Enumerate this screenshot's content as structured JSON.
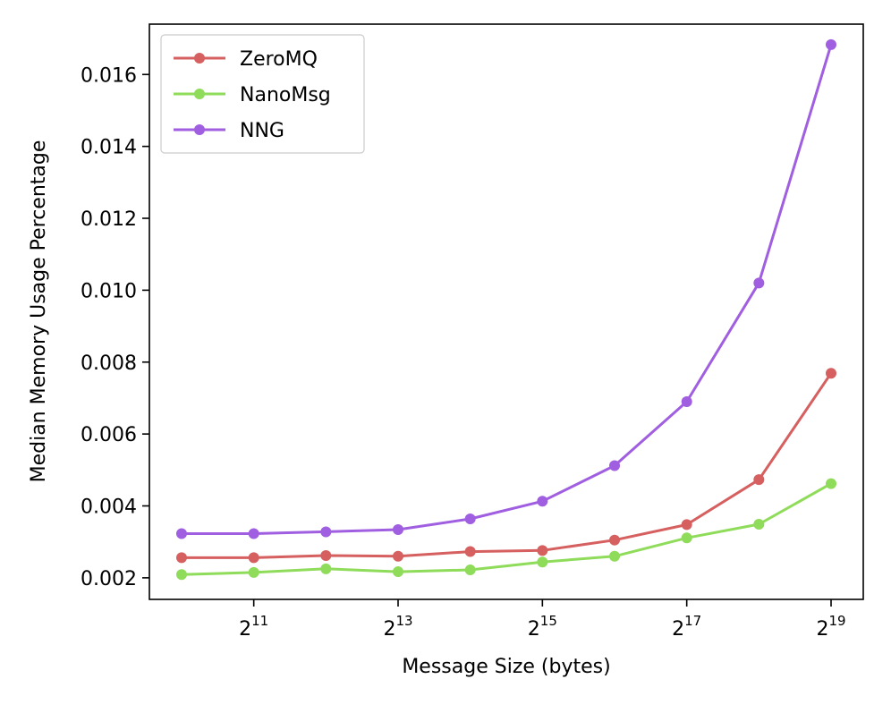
{
  "chart_data": {
    "type": "line",
    "title": "",
    "xlabel": "Message Size (bytes)",
    "ylabel": "Median Memory Usage Percentage",
    "x_scale": "log2",
    "x": [
      1024,
      2048,
      4096,
      8192,
      16384,
      32768,
      65536,
      131072,
      262144,
      524288
    ],
    "xlim": [
      1024,
      524288
    ],
    "ylim": [
      0.0014,
      0.0174
    ],
    "x_ticks": [
      {
        "base": "2",
        "exp": "11",
        "value": 2048
      },
      {
        "base": "2",
        "exp": "13",
        "value": 8192
      },
      {
        "base": "2",
        "exp": "15",
        "value": 32768
      },
      {
        "base": "2",
        "exp": "17",
        "value": 131072
      },
      {
        "base": "2",
        "exp": "19",
        "value": 524288
      }
    ],
    "y_ticks": [
      {
        "label": "0.002",
        "value": 0.002
      },
      {
        "label": "0.004",
        "value": 0.004
      },
      {
        "label": "0.006",
        "value": 0.006
      },
      {
        "label": "0.008",
        "value": 0.008
      },
      {
        "label": "0.010",
        "value": 0.01
      },
      {
        "label": "0.012",
        "value": 0.012
      },
      {
        "label": "0.014",
        "value": 0.014
      },
      {
        "label": "0.016",
        "value": 0.016
      }
    ],
    "grid": false,
    "legend_position": "top-left",
    "series": [
      {
        "name": "ZeroMQ",
        "color": "#d65f5f",
        "values": [
          0.00256,
          0.00256,
          0.00262,
          0.0026,
          0.00273,
          0.00276,
          0.00305,
          0.00348,
          0.00473,
          0.00769
        ]
      },
      {
        "name": "NanoMsg",
        "color": "#8fdb5a",
        "values": [
          0.00209,
          0.00215,
          0.00225,
          0.00217,
          0.00222,
          0.00244,
          0.0026,
          0.00311,
          0.00349,
          0.00462
        ]
      },
      {
        "name": "NNG",
        "color": "#a05ee0",
        "values": [
          0.00323,
          0.00323,
          0.00328,
          0.00334,
          0.00364,
          0.00413,
          0.00512,
          0.0069,
          0.0102,
          0.01683
        ]
      }
    ]
  }
}
